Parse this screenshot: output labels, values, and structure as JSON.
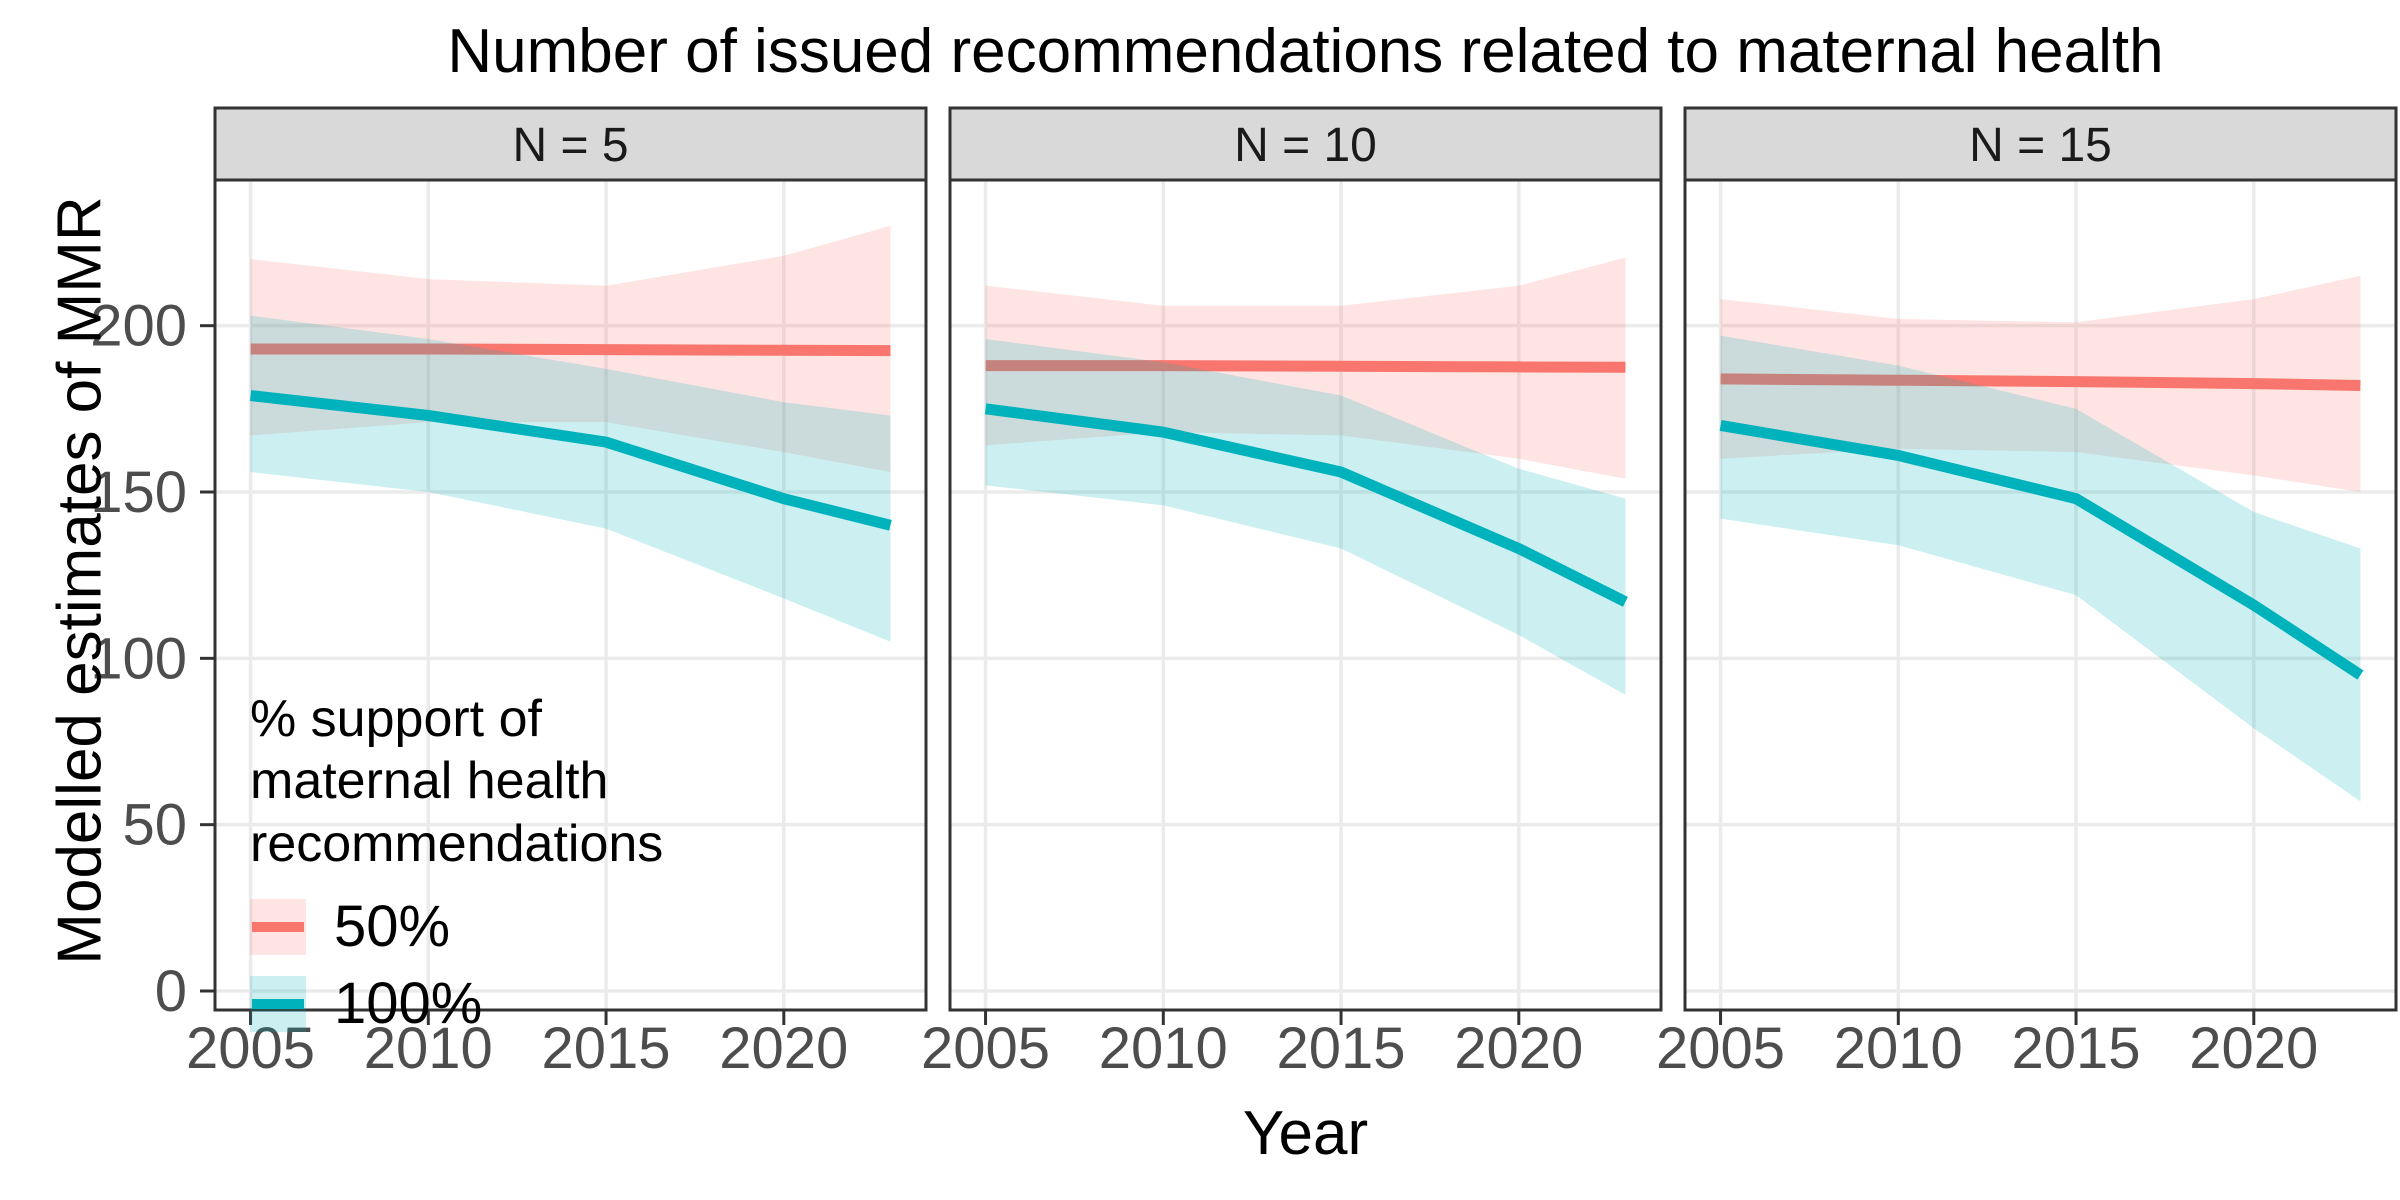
{
  "title": "Number of issued recommendations related to maternal health",
  "colors": {
    "red": "#F8766D",
    "teal": "#00B2BC",
    "ribbon_alpha": 0.2,
    "grid": "#EBEBEB",
    "panel_border": "#333333",
    "strip_fill": "#D9D9D9",
    "strip_text": "#1A1A1A",
    "tick_text": "#4D4D4D",
    "background": "#FFFFFF"
  },
  "chart_data": {
    "type": "line",
    "title": "Number of issued recommendations related to maternal health",
    "xlabel": "Year",
    "ylabel": "Modelled estimates of MMR",
    "grid": true,
    "x_domain": [
      2004,
      2024
    ],
    "y_domain": [
      -5.7,
      243.5
    ],
    "x_ticks": [
      2005,
      2010,
      2015,
      2020
    ],
    "y_ticks": [
      0,
      50,
      100,
      150,
      200
    ],
    "x": [
      2005,
      2010,
      2015,
      2020,
      2023
    ],
    "facets": [
      {
        "label": "N = 5",
        "series": [
          {
            "name": "50%",
            "color": "#F8766D",
            "line": [
              193,
              193,
              192.8,
              192.6,
              192.5
            ],
            "lo": [
              167,
              171,
              171,
              162,
              156
            ],
            "hi": [
              220,
              214,
              212,
              221,
              230
            ]
          },
          {
            "name": "100%",
            "color": "#00B2BC",
            "line": [
              179,
              173,
              165,
              148,
              140
            ],
            "lo": [
              156,
              150,
              139,
              118,
              105
            ],
            "hi": [
              203,
              196,
              187,
              177,
              173
            ]
          }
        ]
      },
      {
        "label": "N = 10",
        "series": [
          {
            "name": "50%",
            "color": "#F8766D",
            "line": [
              188,
              188,
              187.8,
              187.6,
              187.5
            ],
            "lo": [
              164,
              168,
              167,
              160,
              154
            ],
            "hi": [
              212,
              206,
              206,
              212,
              220.5
            ]
          },
          {
            "name": "100%",
            "color": "#00B2BC",
            "line": [
              175,
              168,
              156,
              133,
              117
            ],
            "lo": [
              152,
              146,
              133,
              107,
              89
            ],
            "hi": [
              196,
              189,
              179,
              157,
              148
            ]
          }
        ]
      },
      {
        "label": "N = 15",
        "series": [
          {
            "name": "50%",
            "color": "#F8766D",
            "line": [
              184,
              183.6,
              183.2,
              182.6,
              182
            ],
            "lo": [
              160,
              163,
              162,
              155,
              150
            ],
            "hi": [
              208,
              202,
              201,
              208,
              215
            ]
          },
          {
            "name": "100%",
            "color": "#00B2BC",
            "line": [
              170,
              161,
              148,
              116,
              95
            ],
            "lo": [
              142,
              134,
              119,
              79,
              57
            ],
            "hi": [
              197,
              188,
              175,
              144,
              133
            ]
          }
        ]
      }
    ],
    "legend": {
      "title": "% support of\nmaternal health\nrecommendations",
      "position": "inside-first-panel-bottom-left",
      "entries": [
        {
          "label": "50%",
          "color": "#F8766D"
        },
        {
          "label": "100%",
          "color": "#00B2BC"
        }
      ]
    }
  }
}
